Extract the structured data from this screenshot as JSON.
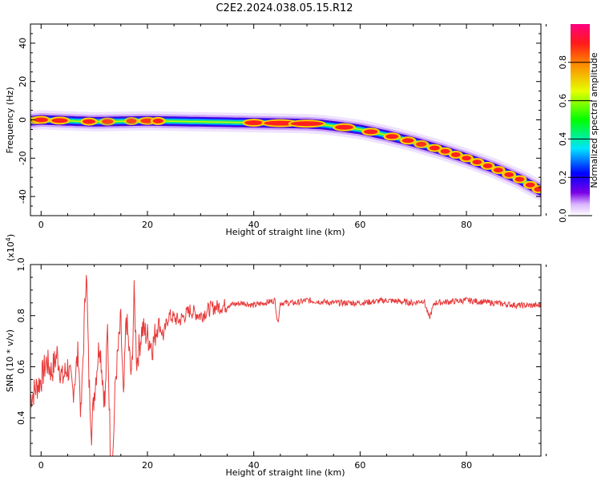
{
  "title": "C2E2.2024.038.05.15.R12",
  "chart_data": [
    {
      "type": "heatmap",
      "name": "spectrogram",
      "xlabel": "Height of straight line (km)",
      "ylabel": "Frequency (Hz)",
      "xlim": [
        -2,
        94
      ],
      "ylim": [
        -50,
        50
      ],
      "xticks": [
        0,
        20,
        40,
        60,
        80
      ],
      "yticks": [
        -40,
        -20,
        0,
        20,
        40
      ],
      "ridge": {
        "x": [
          -2,
          0,
          10,
          20,
          30,
          40,
          50,
          53,
          56,
          60,
          65,
          70,
          75,
          80,
          85,
          90,
          94
        ],
        "y": [
          -0.5,
          0,
          -1,
          -0.5,
          -1,
          -1.5,
          -2,
          -2.5,
          -3.5,
          -5,
          -8,
          -11.5,
          -15.5,
          -20,
          -25,
          -31,
          -37
        ]
      },
      "colorbar": {
        "label": "Normalized spectral amplitude",
        "range": [
          0,
          1
        ],
        "ticks": [
          0.0,
          0.2,
          0.4,
          0.6,
          0.8
        ],
        "tick_labels": [
          "0.0",
          "0.2",
          "0.4",
          "0.6",
          "0.8"
        ]
      }
    },
    {
      "type": "line",
      "name": "snr",
      "xlabel": "Height of straight line (km)",
      "ylabel": "SNR (10 * v/v)",
      "scale_label": "(x10",
      "scale_exp": "4",
      "scale_close": ")",
      "xlim": [
        -2,
        94
      ],
      "ylim": [
        0.25,
        1.0
      ],
      "xticks": [
        0,
        20,
        40,
        60,
        80
      ],
      "yticks": [
        0.4,
        0.6,
        0.8,
        1.0
      ],
      "ytick_labels": [
        "0.4",
        "0.6",
        "0.8",
        "1.0"
      ],
      "color": "#e83a3a",
      "series": {
        "x": [
          -2,
          0,
          1,
          2,
          3,
          4,
          5,
          6,
          7,
          7.5,
          8,
          8.5,
          9,
          9.5,
          10,
          11,
          12,
          12.5,
          13,
          13.5,
          14,
          15,
          15.5,
          16,
          17,
          17.5,
          18,
          19,
          20,
          21,
          22,
          23,
          24,
          26,
          28,
          30,
          32,
          35,
          38,
          40,
          42,
          44,
          44.5,
          45,
          48,
          50,
          55,
          60,
          65,
          70,
          72,
          73,
          74,
          80,
          85,
          90,
          94
        ],
        "y": [
          0.48,
          0.55,
          0.62,
          0.58,
          0.65,
          0.55,
          0.6,
          0.5,
          0.66,
          0.4,
          0.7,
          1.0,
          0.55,
          0.35,
          0.5,
          0.7,
          0.45,
          0.75,
          0.3,
          0.25,
          0.55,
          0.78,
          0.45,
          0.8,
          0.55,
          0.88,
          0.62,
          0.75,
          0.72,
          0.68,
          0.78,
          0.72,
          0.8,
          0.78,
          0.82,
          0.8,
          0.83,
          0.84,
          0.85,
          0.84,
          0.85,
          0.86,
          0.77,
          0.85,
          0.85,
          0.86,
          0.85,
          0.85,
          0.86,
          0.85,
          0.86,
          0.79,
          0.85,
          0.86,
          0.85,
          0.84,
          0.84
        ]
      }
    }
  ]
}
